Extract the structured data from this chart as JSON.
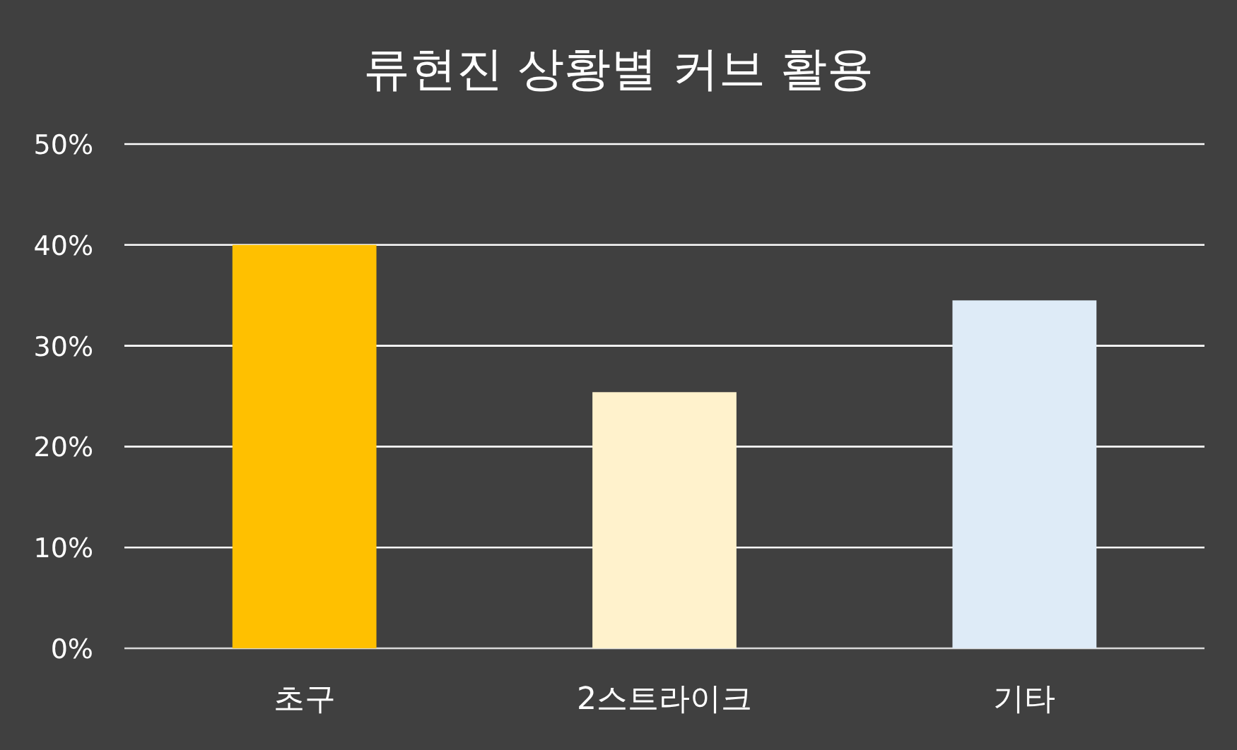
{
  "chart_data": {
    "type": "bar",
    "title": "류현진 상황별 커브 활용",
    "categories": [
      "초구",
      "2스트라이크",
      "기타"
    ],
    "values": [
      40,
      25.4,
      34.5
    ],
    "colors": [
      "#ffc000",
      "#fff2cc",
      "#deebf7"
    ],
    "ylim": [
      0,
      50
    ],
    "yticks": [
      {
        "value": 0,
        "label": "0%"
      },
      {
        "value": 10,
        "label": "10%"
      },
      {
        "value": 20,
        "label": "20%"
      },
      {
        "value": 30,
        "label": "30%"
      },
      {
        "value": 40,
        "label": "40%"
      },
      {
        "value": 50,
        "label": "50%"
      }
    ],
    "grid": "y"
  }
}
